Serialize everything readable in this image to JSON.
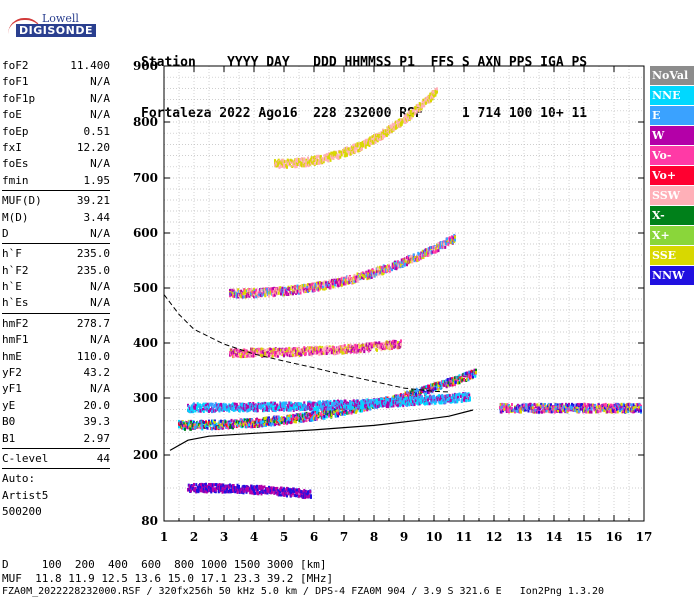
{
  "logo": {
    "top": "Lowell",
    "bottom": "DIGISONDE"
  },
  "header": {
    "line1": "Station    YYYY DAY   DDD HHMMSS P1  FFS S AXN PPS IGA PS",
    "line2": "Fortaleza 2022 Ago16  228 232000 RSF     1 714 100 10+ 11"
  },
  "params": [
    {
      "label": "foF2",
      "value": "11.400"
    },
    {
      "label": "foF1",
      "value": "N/A"
    },
    {
      "label": "foF1p",
      "value": "N/A"
    },
    {
      "label": "foE",
      "value": "N/A"
    },
    {
      "label": "foEp",
      "value": "0.51"
    },
    {
      "label": "fxI",
      "value": "12.20"
    },
    {
      "label": "foEs",
      "value": "N/A"
    },
    {
      "label": "fmin",
      "value": "1.95"
    },
    {
      "sep": true
    },
    {
      "label": "MUF(D)",
      "value": "39.21"
    },
    {
      "label": "M(D)",
      "value": "3.44"
    },
    {
      "label": "D",
      "value": "N/A"
    },
    {
      "sep": true
    },
    {
      "label": "h`F",
      "value": "235.0"
    },
    {
      "label": "h`F2",
      "value": "235.0"
    },
    {
      "label": "h`E",
      "value": "N/A"
    },
    {
      "label": "h`Es",
      "value": "N/A"
    },
    {
      "sep": true
    },
    {
      "label": "hmF2",
      "value": "278.7"
    },
    {
      "label": "hmF1",
      "value": "N/A"
    },
    {
      "label": "hmE",
      "value": "110.0"
    },
    {
      "label": "yF2",
      "value": "43.2"
    },
    {
      "label": "yF1",
      "value": "N/A"
    },
    {
      "label": "yE",
      "value": "20.0"
    },
    {
      "label": "B0",
      "value": "39.3"
    },
    {
      "label": "B1",
      "value": "2.97"
    },
    {
      "sep": true
    },
    {
      "label": "C-level",
      "value": "44"
    },
    {
      "sep": true
    },
    {
      "label": "Auto:",
      "value": ""
    },
    {
      "label": "Artist5",
      "value": ""
    },
    {
      "label": "500200",
      "value": ""
    }
  ],
  "footer": {
    "line1": "D     100  200  400  600  800 1000 1500 3000 [km]",
    "line2": "MUF  11.8 11.9 12.5 13.6 15.0 17.1 23.3 39.2 [MHz]",
    "line3": "FZA0M_2022228232000.RSF / 320fx256h 50 kHz 5.0 km / DPS-4 FZA0M 904 / 3.9 S 321.6 E   Ion2Png 1.3.20"
  },
  "legend": [
    {
      "label": "NoVal",
      "color": "#8c8c8c"
    },
    {
      "label": "NNE",
      "color": "#00d8ff"
    },
    {
      "label": "E",
      "color": "#3aa2ff"
    },
    {
      "label": "W",
      "color": "#b400a8"
    },
    {
      "label": "Vo-",
      "color": "#ff3aa6"
    },
    {
      "label": "Vo+",
      "color": "#ff0030"
    },
    {
      "label": "SSW",
      "color": "#ffb0b8"
    },
    {
      "label": "X-",
      "color": "#00801a"
    },
    {
      "label": "X+",
      "color": "#8ad63a"
    },
    {
      "label": "SSE",
      "color": "#d8d800"
    },
    {
      "label": "NNW",
      "color": "#2010e0"
    }
  ],
  "chart_data": {
    "type": "scatter",
    "x_ticks": [
      "1",
      "2",
      "3",
      "4",
      "5",
      "6",
      "7",
      "8",
      "9",
      "10",
      "11",
      "12",
      "13",
      "14",
      "15",
      "16",
      "17"
    ],
    "y_ticks": [
      "80",
      "200",
      "300",
      "400",
      "500",
      "600",
      "700",
      "800",
      "900"
    ],
    "xlim": [
      1,
      17
    ],
    "y_tick_values": [
      80,
      200,
      300,
      400,
      500,
      600,
      700,
      800,
      900
    ],
    "y_scale": "non-linear (compressed between 80 and 200)",
    "grid": true,
    "profile_curve": [
      [
        1.2,
        208
      ],
      [
        1.8,
        226
      ],
      [
        2.5,
        233
      ],
      [
        4,
        238
      ],
      [
        6,
        244
      ],
      [
        8,
        252
      ],
      [
        9.5,
        261
      ],
      [
        10.5,
        268
      ],
      [
        11.3,
        279
      ]
    ],
    "dashed_curve": [
      [
        1,
        488
      ],
      [
        1.5,
        452
      ],
      [
        2,
        425
      ],
      [
        3,
        398
      ],
      [
        4,
        380
      ],
      [
        5,
        367
      ],
      [
        6,
        355
      ],
      [
        7,
        342
      ],
      [
        8,
        330
      ],
      [
        9,
        318
      ],
      [
        10,
        312
      ],
      [
        10.5,
        311
      ]
    ],
    "trace_bands": [
      {
        "name": "F trace 1st hop",
        "x_start": 1.5,
        "x_end": 11.4,
        "y_start": 252,
        "y_end": 345,
        "colors": [
          "#3aa2ff",
          "#ff0030",
          "#00801a",
          "#d8d800",
          "#b400a8",
          "#00d8ff",
          "#2010e0",
          "#ff3aa6"
        ]
      },
      {
        "name": "F trace upper band",
        "x_start": 1.8,
        "x_end": 11.2,
        "y_start": 283,
        "y_end": 302,
        "colors": [
          "#3aa2ff",
          "#00d8ff",
          "#b400a8"
        ]
      },
      {
        "name": "F trace 2nd hop",
        "x_start": 3.2,
        "x_end": 10.7,
        "y_start": 490,
        "y_end": 590,
        "colors": [
          "#d8d800",
          "#ffb0b8",
          "#3aa2ff",
          "#ff3aa6",
          "#b400a8"
        ]
      },
      {
        "name": "F trace 3rd hop",
        "x_start": 4.7,
        "x_end": 10.1,
        "y_start": 725,
        "y_end": 855,
        "colors": [
          "#d8d800",
          "#ffb0b8"
        ]
      },
      {
        "name": "middle band",
        "x_start": 3.2,
        "x_end": 8.9,
        "y_start": 382,
        "y_end": 398,
        "colors": [
          "#ff3aa6",
          "#ffb0b8",
          "#d8d800",
          "#b400a8"
        ]
      },
      {
        "name": "low band",
        "x_start": 1.8,
        "x_end": 5.9,
        "y_start": 140,
        "y_end": 128,
        "colors": [
          "#b400a8",
          "#2010e0"
        ]
      },
      {
        "name": "spread right",
        "x_start": 12.2,
        "x_end": 16.9,
        "y_start": 282,
        "y_end": 282,
        "colors": [
          "#b400a8",
          "#3aa2ff",
          "#ff3aa6",
          "#2010e0",
          "#d8d800"
        ]
      }
    ]
  }
}
